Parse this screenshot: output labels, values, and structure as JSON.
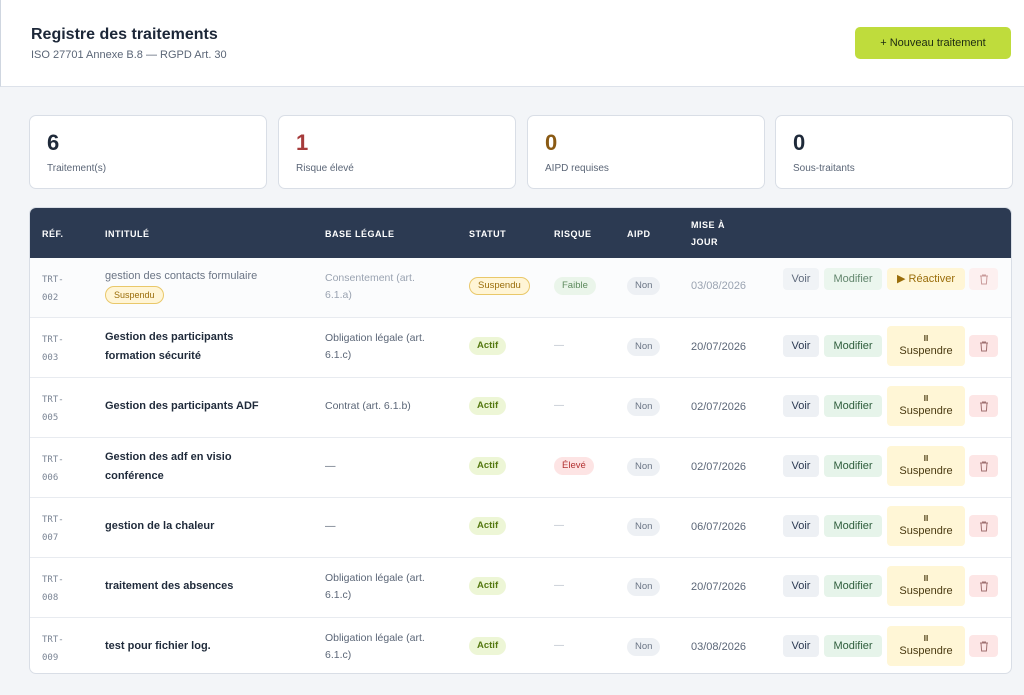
{
  "header": {
    "title": "Registre des traitements",
    "subtitle": "ISO 27701 Annexe B.8 — RGPD Art. 30",
    "new_button": "+ Nouveau traitement"
  },
  "stats": [
    {
      "value": "6",
      "label": "Traitement(s)"
    },
    {
      "value": "1",
      "label": "Risque élevé"
    },
    {
      "value": "0",
      "label": "AIPD requises"
    },
    {
      "value": "0",
      "label": "Sous-traitants"
    }
  ],
  "table": {
    "columns": {
      "ref": "RÉF.",
      "title": "INTITULÉ",
      "legal": "BASE LÉGALE",
      "status": "STATUT",
      "risk": "RISQUE",
      "aipd": "AIPD",
      "updated_1": "MISE À",
      "updated_2": "JOUR"
    },
    "actions": {
      "view": "Voir",
      "edit": "Modifier",
      "suspend_icon": "II",
      "suspend": "Suspendre",
      "reactivate": "▶ Réactiver",
      "delete_icon": "trash-icon"
    },
    "rows": [
      {
        "ref_1": "TRT-",
        "ref_2": "002",
        "title_1": "gestion des contacts formulaire",
        "title_badge": "Suspendu",
        "legal_1": "Consentement (art.",
        "legal_2": "6.1.a)",
        "status": "Suspendu",
        "risk": "Faible",
        "aipd": "Non",
        "updated": "03/08/2026"
      },
      {
        "ref_1": "TRT-",
        "ref_2": "003",
        "title_1": "Gestion des participants",
        "title_2": "formation sécurité",
        "legal_1": "Obligation légale (art.",
        "legal_2": "6.1.c)",
        "status": "Actif",
        "risk": "—",
        "aipd": "Non",
        "updated": "20/07/2026"
      },
      {
        "ref_1": "TRT-",
        "ref_2": "005",
        "title_1": "Gestion des participants ADF",
        "legal_1": "Contrat (art. 6.1.b)",
        "status": "Actif",
        "risk": "—",
        "aipd": "Non",
        "updated": "02/07/2026"
      },
      {
        "ref_1": "TRT-",
        "ref_2": "006",
        "title_1": "Gestion des adf en visio",
        "title_2": "conférence",
        "legal_1": "—",
        "status": "Actif",
        "risk": "Élevé",
        "aipd": "Non",
        "updated": "02/07/2026"
      },
      {
        "ref_1": "TRT-",
        "ref_2": "007",
        "title_1": "gestion de la chaleur",
        "legal_1": "—",
        "status": "Actif",
        "risk": "—",
        "aipd": "Non",
        "updated": "06/07/2026"
      },
      {
        "ref_1": "TRT-",
        "ref_2": "008",
        "title_1": "traitement des absences",
        "legal_1": "Obligation légale (art.",
        "legal_2": "6.1.c)",
        "status": "Actif",
        "risk": "—",
        "aipd": "Non",
        "updated": "20/07/2026"
      },
      {
        "ref_1": "TRT-",
        "ref_2": "009",
        "title_1": "test pour fichier log.",
        "legal_1": "Obligation légale (art.",
        "legal_2": "6.1.c)",
        "status": "Actif",
        "risk": "—",
        "aipd": "Non",
        "updated": "03/08/2026"
      }
    ]
  },
  "colors": {
    "accent": "#bfdc3c",
    "table_header": "#2c3a52",
    "risk_high": "#b23333"
  }
}
